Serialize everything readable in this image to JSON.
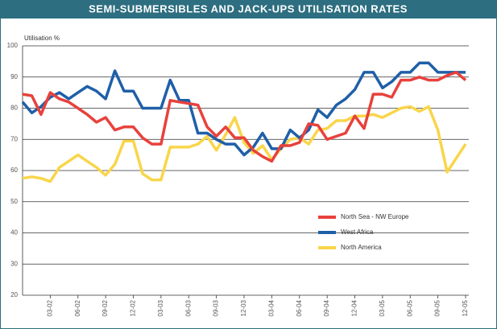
{
  "chart_data": {
    "type": "line",
    "title": "SEMI-SUBMERSIBLES AND JACK-UPS UTILISATION RATES",
    "ylabel": "Utilisation %",
    "categories": [
      null,
      null,
      null,
      "03-02",
      null,
      null,
      "06-02",
      null,
      null,
      "09-02",
      null,
      null,
      "12-02",
      null,
      null,
      "03-03",
      null,
      null,
      "06-03",
      null,
      null,
      "09-03",
      null,
      null,
      "12-03",
      null,
      null,
      "03-04",
      null,
      null,
      "06-04",
      null,
      null,
      "09-04",
      null,
      null,
      "12-04",
      null,
      null,
      "03-05",
      null,
      null,
      "06-05",
      null,
      null,
      "09-05",
      null,
      null,
      "12-05"
    ],
    "series": [
      {
        "name": "North Sea - NW Europe",
        "color": "#e8413c",
        "values": [
          84.5,
          84,
          78,
          85,
          83,
          82,
          80,
          78,
          75.5,
          77,
          73,
          74,
          74,
          70.5,
          68.5,
          68.5,
          82.5,
          82,
          81.5,
          81,
          74,
          71,
          74,
          70.5,
          70.5,
          66.5,
          64.5,
          63,
          68,
          68,
          69,
          75,
          74.5,
          70,
          71,
          72,
          77.5,
          73.5,
          84.5,
          84.5,
          83.5,
          89,
          89,
          90,
          89,
          89,
          90.5,
          91.5,
          89
        ]
      },
      {
        "name": "West Africa",
        "color": "#1f5fa8",
        "values": [
          82,
          78.5,
          80.5,
          83.5,
          85,
          83,
          85,
          87,
          85.5,
          83,
          92,
          85.5,
          85.5,
          80,
          80,
          80,
          89,
          82.5,
          82.5,
          72,
          72,
          70,
          68.5,
          68.5,
          65,
          67.5,
          72,
          67,
          67,
          73,
          70.5,
          73,
          79.5,
          77,
          81,
          83,
          86,
          91.5,
          91.5,
          86.5,
          88.5,
          91.5,
          91.5,
          94.5,
          94.5,
          91.5,
          91.5,
          91.5,
          91.5
        ]
      },
      {
        "name": "North America",
        "color": "#f9d54a",
        "values": [
          57.5,
          58,
          57.5,
          56.5,
          61,
          63,
          65,
          63,
          61,
          58.5,
          62,
          69.5,
          69.5,
          59,
          57,
          57,
          67.5,
          67.5,
          67.5,
          68.5,
          71,
          66.5,
          71.5,
          77,
          69,
          65.5,
          68,
          63.5,
          67,
          70,
          70.5,
          68.5,
          73,
          73.5,
          76,
          76,
          77.5,
          77.5,
          78,
          77,
          78.5,
          80,
          80.5,
          79,
          80.5,
          73,
          59.5,
          64,
          68.5
        ]
      }
    ],
    "ylim": [
      20,
      100
    ],
    "yticks": [
      20,
      30,
      40,
      50,
      60,
      70,
      80,
      90,
      100
    ],
    "grid": true,
    "legend": "lower right"
  }
}
